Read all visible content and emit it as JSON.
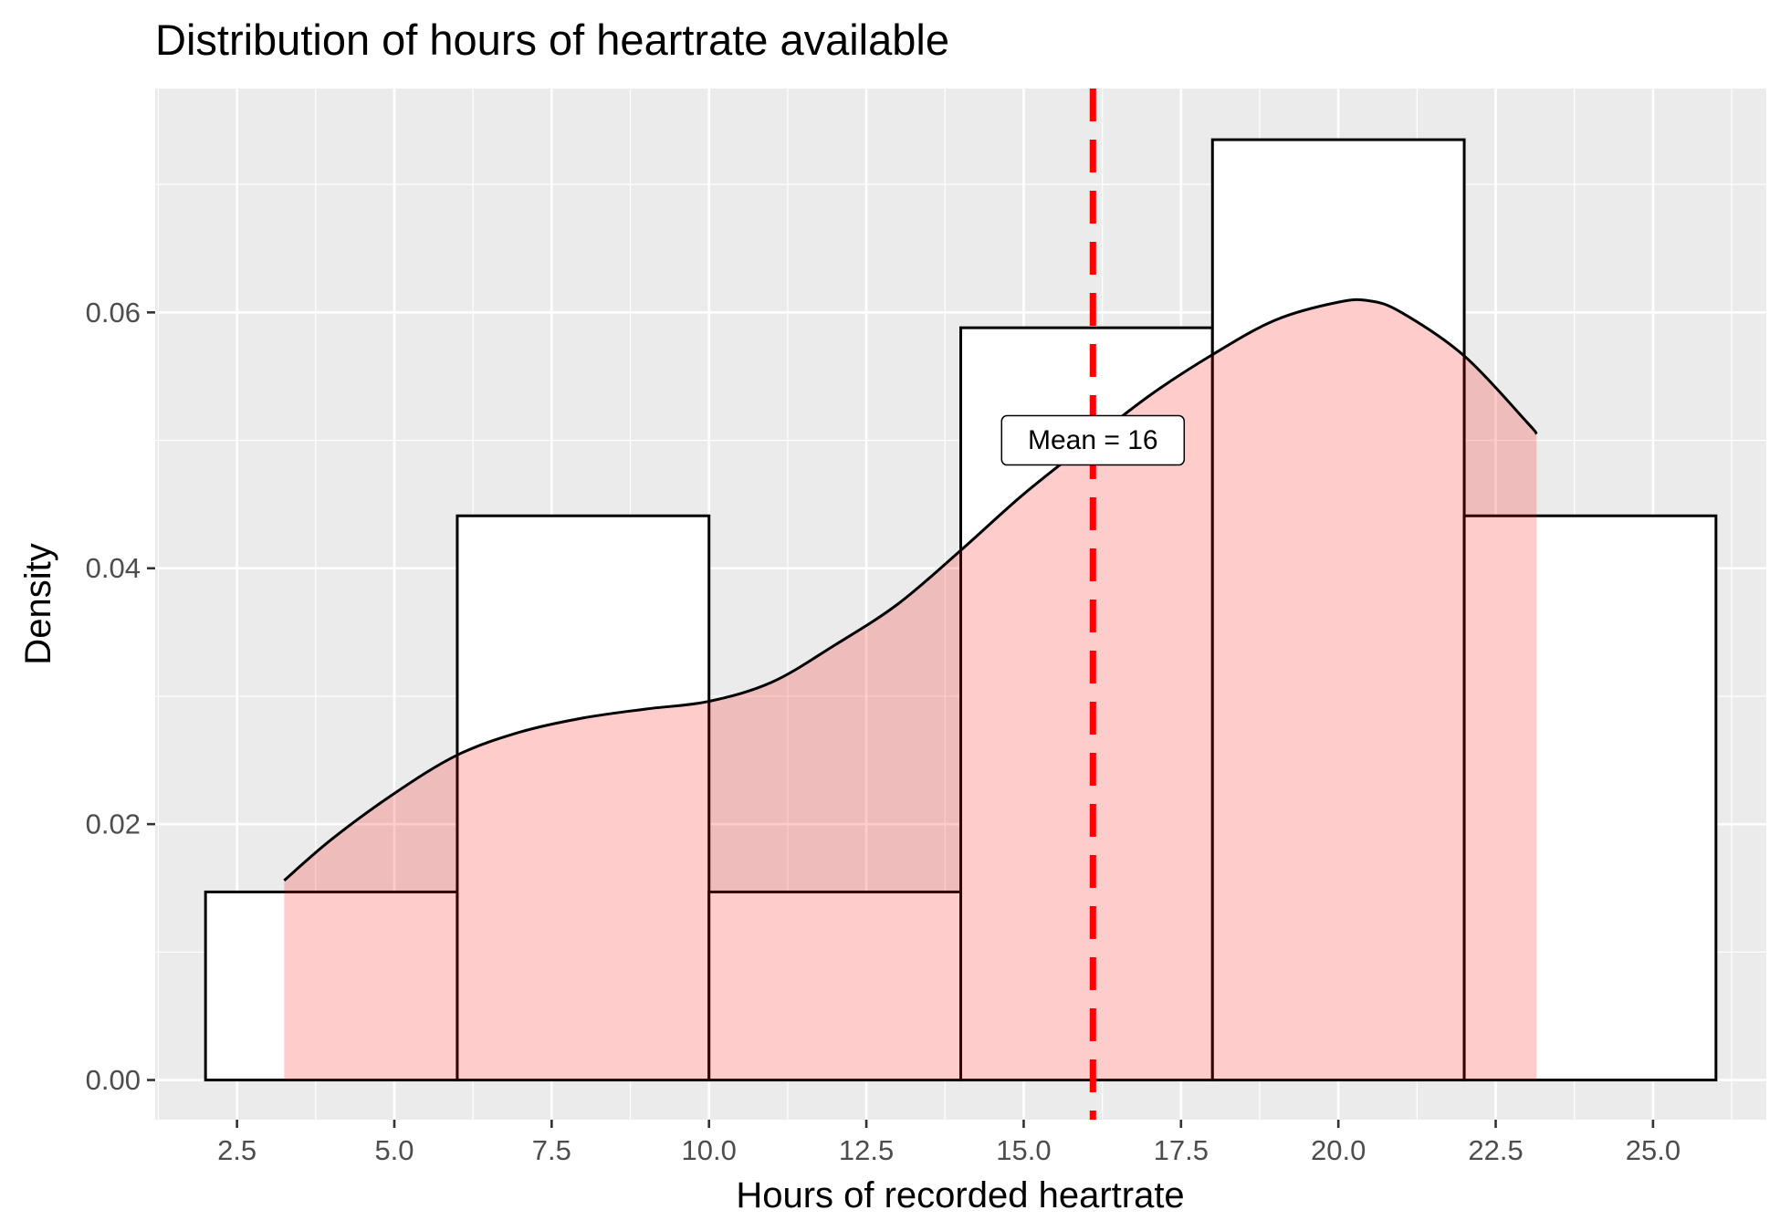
{
  "chart_data": {
    "type": "histogram",
    "title": "Distribution of hours of heartrate available",
    "xlabel": "Hours of recorded heartrate",
    "ylabel": "Density",
    "xlim": [
      1.2,
      26.8
    ],
    "ylim": [
      -0.0031,
      0.0775
    ],
    "x_ticks": [
      "2.5",
      "5.0",
      "7.5",
      "10.0",
      "12.5",
      "15.0",
      "17.5",
      "20.0",
      "22.5",
      "25.0"
    ],
    "y_ticks": [
      "0.00",
      "0.02",
      "0.04",
      "0.06"
    ],
    "grid": true,
    "bins": [
      {
        "x0": 2,
        "x1": 6,
        "density": 0.0147
      },
      {
        "x0": 6,
        "x1": 10,
        "density": 0.0441
      },
      {
        "x0": 10,
        "x1": 14,
        "density": 0.0147
      },
      {
        "x0": 14,
        "x1": 18,
        "density": 0.0588
      },
      {
        "x0": 18,
        "x1": 22,
        "density": 0.0735
      },
      {
        "x0": 22,
        "x1": 26,
        "density": 0.0441
      }
    ],
    "density_curve": {
      "x": [
        3.25,
        4.0,
        5.0,
        6.0,
        7.0,
        8.0,
        9.0,
        10.0,
        11.0,
        12.0,
        13.0,
        14.0,
        15.0,
        16.0,
        17.0,
        18.0,
        19.0,
        20.0,
        20.5,
        21.0,
        22.0,
        23.0,
        23.15
      ],
      "y": [
        0.0156,
        0.0188,
        0.0224,
        0.0254,
        0.0272,
        0.0283,
        0.029,
        0.0296,
        0.0311,
        0.034,
        0.0372,
        0.0414,
        0.0458,
        0.0497,
        0.0535,
        0.0567,
        0.0594,
        0.0608,
        0.0609,
        0.06,
        0.0566,
        0.0514,
        0.0505
      ]
    },
    "mean_line": {
      "x": 16.1,
      "color": "#ff0000",
      "style": "dashed"
    },
    "annotation": {
      "text": "Mean = 16",
      "x": 16.1,
      "y": 0.05
    }
  }
}
